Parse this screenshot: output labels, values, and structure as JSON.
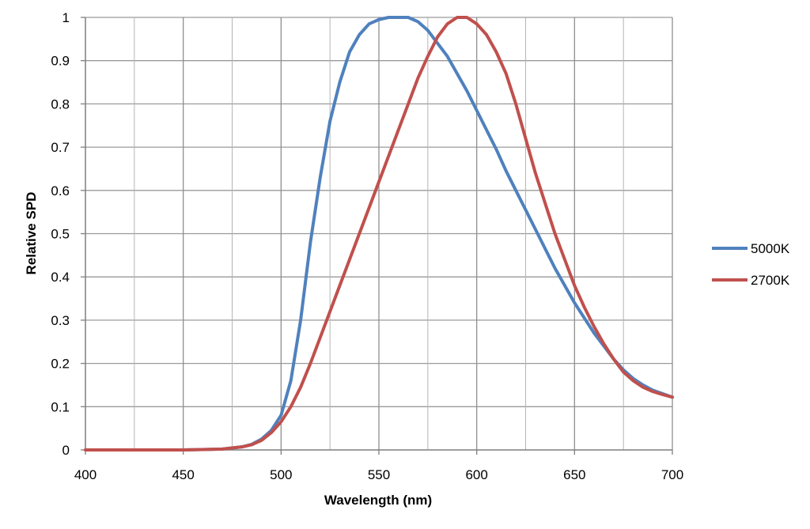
{
  "chart_data": {
    "type": "line",
    "title": "",
    "xlabel": "Wavelength (nm)",
    "ylabel": "Relative SPD",
    "xlim": [
      400,
      700
    ],
    "ylim": [
      0,
      1
    ],
    "grid": true,
    "legend_position": "right",
    "x_ticks": [
      {
        "value": 400,
        "label": "400"
      },
      {
        "value": 450,
        "label": "450"
      },
      {
        "value": 500,
        "label": "500"
      },
      {
        "value": 550,
        "label": "550"
      },
      {
        "value": 600,
        "label": "600"
      },
      {
        "value": 650,
        "label": "650"
      },
      {
        "value": 700,
        "label": "700"
      }
    ],
    "x_minor_gridlines": [
      425,
      475,
      525,
      575,
      625,
      675
    ],
    "y_ticks": [
      {
        "value": 0,
        "label": "0"
      },
      {
        "value": 0.1,
        "label": "0.1"
      },
      {
        "value": 0.2,
        "label": "0.2"
      },
      {
        "value": 0.3,
        "label": "0.3"
      },
      {
        "value": 0.4,
        "label": "0.4"
      },
      {
        "value": 0.5,
        "label": "0.5"
      },
      {
        "value": 0.6,
        "label": "0.6"
      },
      {
        "value": 0.7,
        "label": "0.7"
      },
      {
        "value": 0.8,
        "label": "0.8"
      },
      {
        "value": 0.9,
        "label": "0.9"
      },
      {
        "value": 1,
        "label": "1"
      }
    ],
    "x": [
      400,
      410,
      420,
      430,
      440,
      450,
      460,
      470,
      480,
      485,
      490,
      495,
      500,
      505,
      510,
      515,
      520,
      525,
      530,
      535,
      540,
      545,
      550,
      555,
      560,
      565,
      570,
      575,
      580,
      585,
      590,
      595,
      600,
      605,
      610,
      615,
      620,
      625,
      630,
      635,
      640,
      645,
      650,
      655,
      660,
      665,
      670,
      675,
      680,
      685,
      690,
      695,
      700
    ],
    "series": [
      {
        "name": "5000K",
        "color": "#4f81bd",
        "values": [
          0,
          0,
          0,
          0,
          0,
          0,
          0.001,
          0.002,
          0.007,
          0.013,
          0.025,
          0.045,
          0.08,
          0.16,
          0.3,
          0.48,
          0.63,
          0.76,
          0.85,
          0.92,
          0.96,
          0.985,
          0.995,
          1.0,
          1.0,
          1.0,
          0.99,
          0.97,
          0.94,
          0.91,
          0.87,
          0.83,
          0.785,
          0.74,
          0.695,
          0.645,
          0.6,
          0.555,
          0.51,
          0.465,
          0.42,
          0.38,
          0.34,
          0.305,
          0.27,
          0.24,
          0.21,
          0.185,
          0.165,
          0.15,
          0.138,
          0.13,
          0.122
        ]
      },
      {
        "name": "2700K",
        "color": "#c0504d",
        "values": [
          0,
          0,
          0,
          0,
          0,
          0,
          0.001,
          0.002,
          0.007,
          0.012,
          0.022,
          0.04,
          0.065,
          0.1,
          0.145,
          0.2,
          0.26,
          0.32,
          0.38,
          0.44,
          0.5,
          0.56,
          0.62,
          0.68,
          0.74,
          0.8,
          0.86,
          0.91,
          0.955,
          0.985,
          1.0,
          1.0,
          0.985,
          0.96,
          0.92,
          0.87,
          0.8,
          0.72,
          0.64,
          0.57,
          0.5,
          0.44,
          0.38,
          0.33,
          0.285,
          0.245,
          0.21,
          0.18,
          0.16,
          0.145,
          0.135,
          0.128,
          0.122
        ]
      }
    ]
  }
}
